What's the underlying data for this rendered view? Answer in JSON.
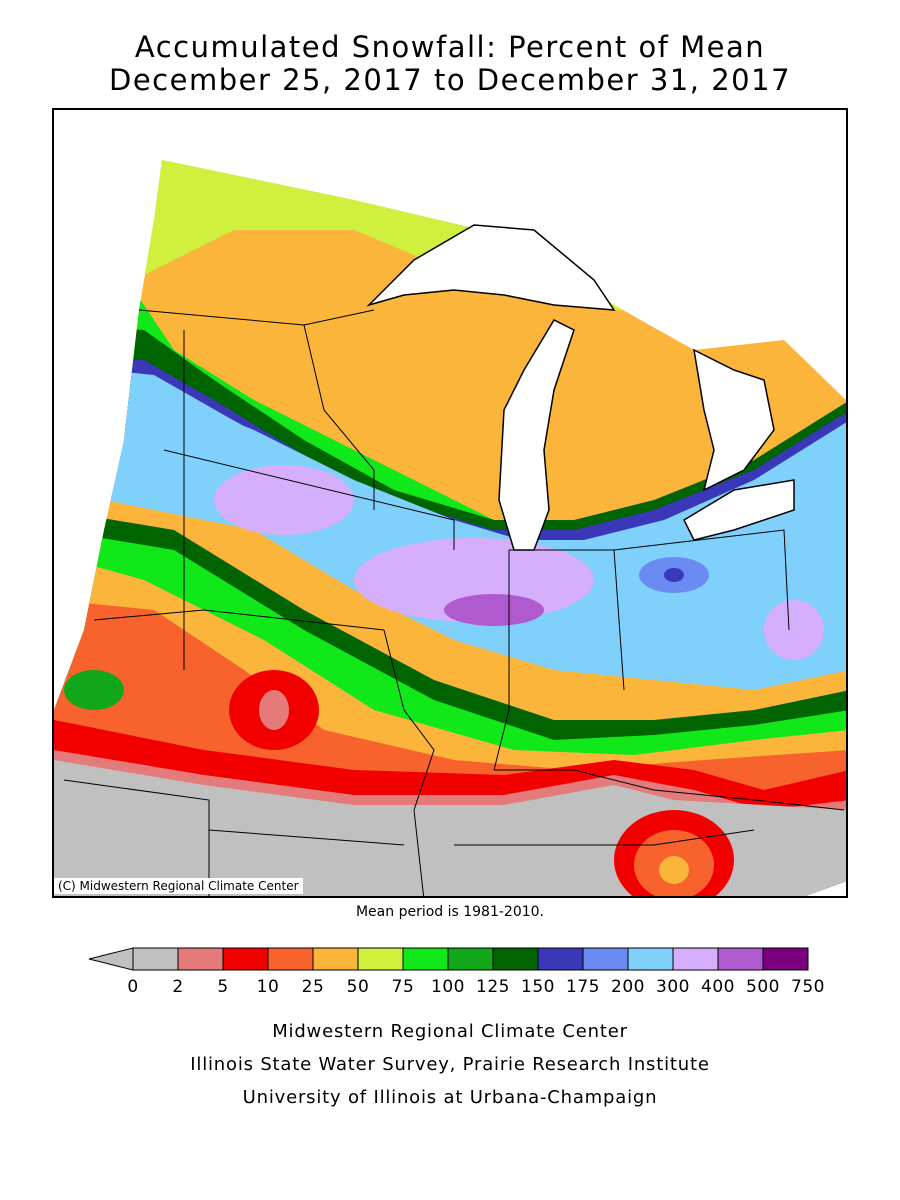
{
  "title": {
    "line1": "Accumulated Snowfall: Percent of Mean",
    "line2": "December 25, 2017 to December 31, 2017"
  },
  "map": {
    "region": "Midwest United States",
    "credit": "(C) Midwestern Regional Climate Center",
    "mean_period": "Mean period is 1981-2010."
  },
  "legend": {
    "arrow_color": "#c0c0c0",
    "bins": [
      {
        "color": "#c0c0c0",
        "from": "0",
        "to": "2"
      },
      {
        "color": "#e47a7a",
        "from": "2",
        "to": "5"
      },
      {
        "color": "#f20000",
        "from": "5",
        "to": "10"
      },
      {
        "color": "#f8622c",
        "from": "10",
        "to": "25"
      },
      {
        "color": "#fbb53a",
        "from": "25",
        "to": "50"
      },
      {
        "color": "#d0f03e",
        "from": "50",
        "to": "75"
      },
      {
        "color": "#11e81a",
        "from": "75",
        "to": "100"
      },
      {
        "color": "#12a61a",
        "from": "100",
        "to": "125"
      },
      {
        "color": "#006400",
        "from": "125",
        "to": "150"
      },
      {
        "color": "#3a37b8",
        "from": "150",
        "to": "175"
      },
      {
        "color": "#6a8bf2",
        "from": "175",
        "to": "200"
      },
      {
        "color": "#80d0fc",
        "from": "200",
        "to": "300"
      },
      {
        "color": "#d6affc",
        "from": "300",
        "to": "400"
      },
      {
        "color": "#b05ad0",
        "from": "400",
        "to": "500"
      },
      {
        "color": "#7b0080",
        "from": "500",
        "to": "750"
      }
    ],
    "tick_labels": [
      "0",
      "2",
      "5",
      "10",
      "25",
      "50",
      "75",
      "100",
      "125",
      "150",
      "175",
      "200",
      "300",
      "400",
      "500",
      "750"
    ]
  },
  "footer": {
    "line1": "Midwestern Regional Climate Center",
    "line2": "Illinois State Water Survey, Prairie Research Institute",
    "line3": "University of Illinois at Urbana-Champaign"
  }
}
